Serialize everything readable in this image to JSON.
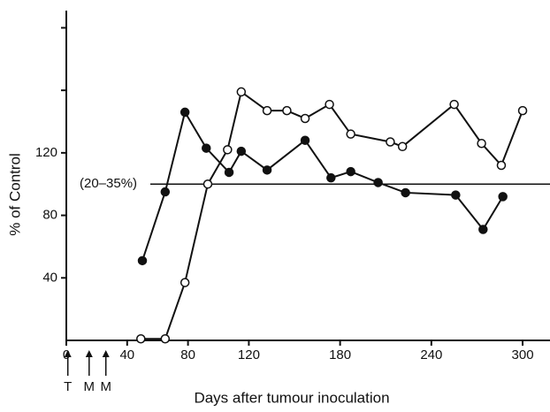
{
  "chart_data": {
    "type": "line",
    "x_label": "Days after tumour inoculation",
    "y_label": "% of Control",
    "xlim": [
      0,
      318
    ],
    "ylim": [
      0,
      211
    ],
    "xticks": [
      0,
      40,
      80,
      120,
      180,
      240,
      300
    ],
    "yticks": [
      40,
      80,
      120
    ],
    "minor_yticks": [
      160,
      200
    ],
    "reference_line": {
      "value": 100,
      "label": "(20–35%)"
    },
    "arrows": [
      {
        "x": 1,
        "label": "T"
      },
      {
        "x": 15,
        "label": "M"
      },
      {
        "x": 26,
        "label": "M"
      }
    ],
    "color": "#111111",
    "series": [
      {
        "marker": "filled",
        "x": [
          50,
          65,
          78,
          92,
          107,
          115,
          132,
          157,
          174,
          187,
          205,
          223,
          256,
          274,
          287
        ],
        "values": [
          51,
          95,
          146,
          123,
          107.5,
          121,
          109,
          128,
          104,
          108,
          101,
          94.5,
          93,
          71,
          92
        ]
      },
      {
        "marker": "open",
        "x": [
          49,
          65,
          78,
          93,
          106,
          115,
          132,
          145,
          157,
          173,
          187,
          213,
          221,
          255,
          273,
          286,
          300
        ],
        "values": [
          1,
          1,
          37,
          100,
          122,
          159,
          147,
          147,
          142,
          151,
          132,
          127,
          124,
          151,
          126,
          112,
          147
        ]
      }
    ]
  }
}
